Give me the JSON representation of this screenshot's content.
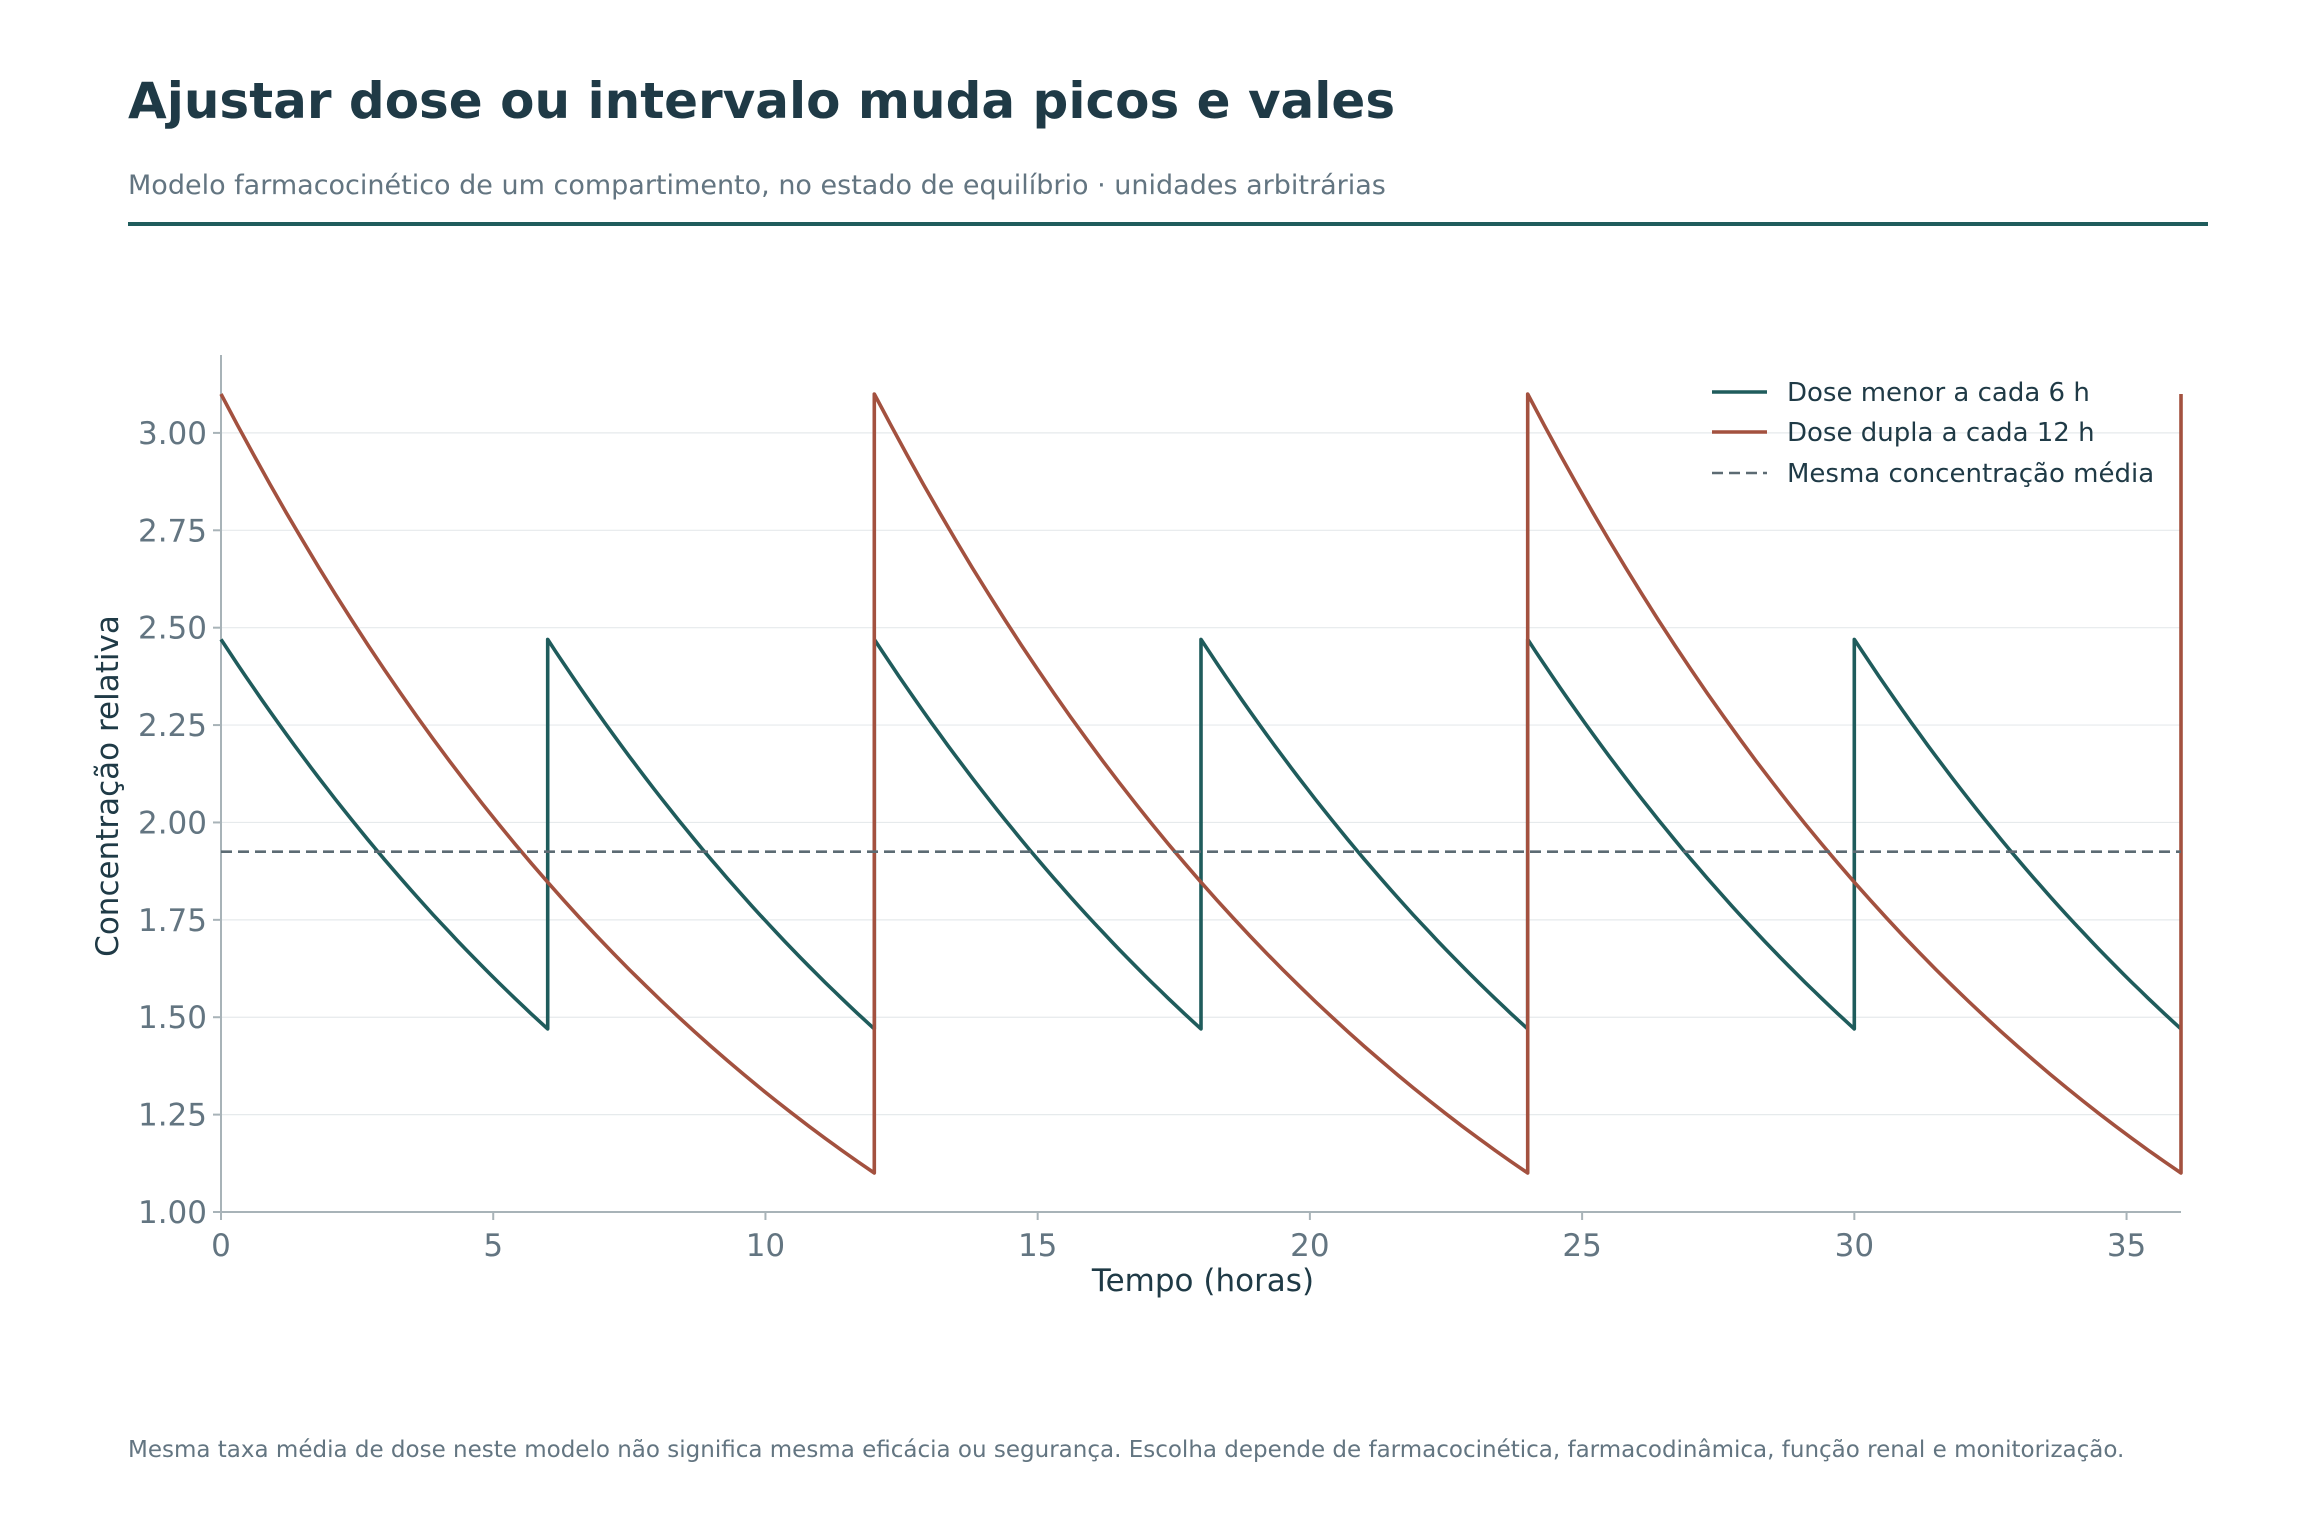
{
  "header": {
    "title": "Ajustar dose ou intervalo muda picos e vales",
    "subtitle": "Modelo farmacocinético de um compartimento, no estado de equilíbrio · unidades arbitrárias"
  },
  "footnote": "Mesma taxa média de dose neste modelo não significa mesma eficácia ou segurança. Escolha depende de farmacocinética, farmacodinâmica, função renal e monitorização.",
  "colors": {
    "series_6h": "#1f5c5c",
    "series_12h": "#a3513f",
    "mean_line": "#5c6b73",
    "axis": "#a8b3b8",
    "grid": "#e6eaec",
    "tick_text": "#637581",
    "label_text": "#1f3a46"
  },
  "chart_data": {
    "type": "line",
    "xlabel": "Tempo (horas)",
    "ylabel": "Concentração relativa",
    "xlim": [
      0,
      36
    ],
    "ylim": [
      1.0,
      3.2
    ],
    "x_ticks": [
      0,
      5,
      10,
      15,
      20,
      25,
      30,
      35
    ],
    "x_tick_labels": [
      "0",
      "5",
      "10",
      "15",
      "20",
      "25",
      "30",
      "35"
    ],
    "y_ticks": [
      1.0,
      1.25,
      1.5,
      1.75,
      2.0,
      2.25,
      2.5,
      2.75,
      3.0
    ],
    "y_tick_labels": [
      "1.00",
      "1.25",
      "1.50",
      "1.75",
      "2.00",
      "2.25",
      "2.50",
      "2.75",
      "3.00"
    ],
    "grid": "horizontal",
    "legend_position": "top-right",
    "series": [
      {
        "name": "Dose menor a cada 6 h",
        "style": "solid",
        "peak": 2.47,
        "trough": 1.47,
        "dose_interval_h": 6,
        "points": [
          [
            0,
            2.47
          ],
          [
            6,
            1.47
          ],
          [
            6,
            2.47
          ],
          [
            12,
            1.47
          ],
          [
            12,
            2.47
          ],
          [
            18,
            1.47
          ],
          [
            18,
            2.47
          ],
          [
            24,
            1.47
          ],
          [
            24,
            2.47
          ],
          [
            30,
            1.47
          ],
          [
            30,
            2.47
          ],
          [
            36,
            1.47
          ]
        ]
      },
      {
        "name": "Dose dupla a cada 12 h",
        "style": "solid",
        "peak": 3.1,
        "trough": 1.1,
        "dose_interval_h": 12,
        "points": [
          [
            0,
            3.1
          ],
          [
            12,
            1.1
          ],
          [
            12,
            3.1
          ],
          [
            24,
            1.1
          ],
          [
            24,
            3.1
          ],
          [
            36,
            1.1
          ],
          [
            36,
            3.1
          ]
        ]
      },
      {
        "name": "Mesma concentração média",
        "style": "dashed",
        "value": 1.925
      }
    ]
  }
}
